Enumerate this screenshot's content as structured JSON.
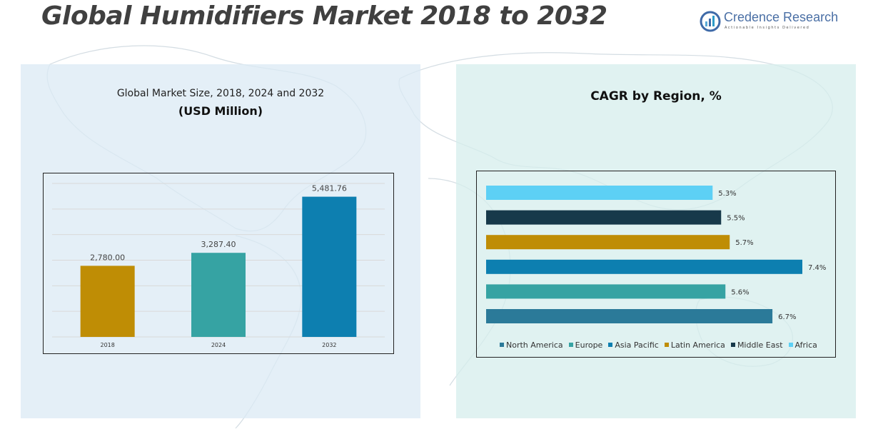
{
  "header": {
    "title": "Global Humidifiers Market 2018 to 2032",
    "logo_name": "Credence Research",
    "logo_tagline": "Actionable Insights Delivered"
  },
  "chart_data": [
    {
      "type": "bar",
      "title": "Global Market Size, 2018, 2024 and 2032",
      "subtitle": "(USD Million)",
      "categories": [
        "2018",
        "2024",
        "2032"
      ],
      "values": [
        2780.0,
        3287.4,
        5481.76
      ],
      "value_labels": [
        "2,780.00",
        "3,287.40",
        "5,481.76"
      ],
      "colors": [
        "#bf8d05",
        "#36a3a3",
        "#0d7fb0"
      ],
      "ylim": [
        0,
        6000
      ],
      "grid": true
    },
    {
      "type": "bar",
      "orientation": "horizontal",
      "title": "CAGR by Region, %",
      "series": [
        {
          "name": "North America",
          "value": 6.7,
          "label": "6.7%",
          "color": "#2b7a99"
        },
        {
          "name": "Europe",
          "value": 5.6,
          "label": "5.6%",
          "color": "#36a3a3"
        },
        {
          "name": "Asia Pacific",
          "value": 7.4,
          "label": "7.4%",
          "color": "#0d7fb0"
        },
        {
          "name": "Latin America",
          "value": 5.7,
          "label": "5.7%",
          "color": "#bf8d05"
        },
        {
          "name": "Middle East",
          "value": 5.5,
          "label": "5.5%",
          "color": "#17394a"
        },
        {
          "name": "Africa",
          "value": 5.3,
          "label": "5.3%",
          "color": "#5dd0f5"
        }
      ],
      "xlim": [
        0,
        7.4
      ],
      "legend_position": "bottom"
    }
  ]
}
